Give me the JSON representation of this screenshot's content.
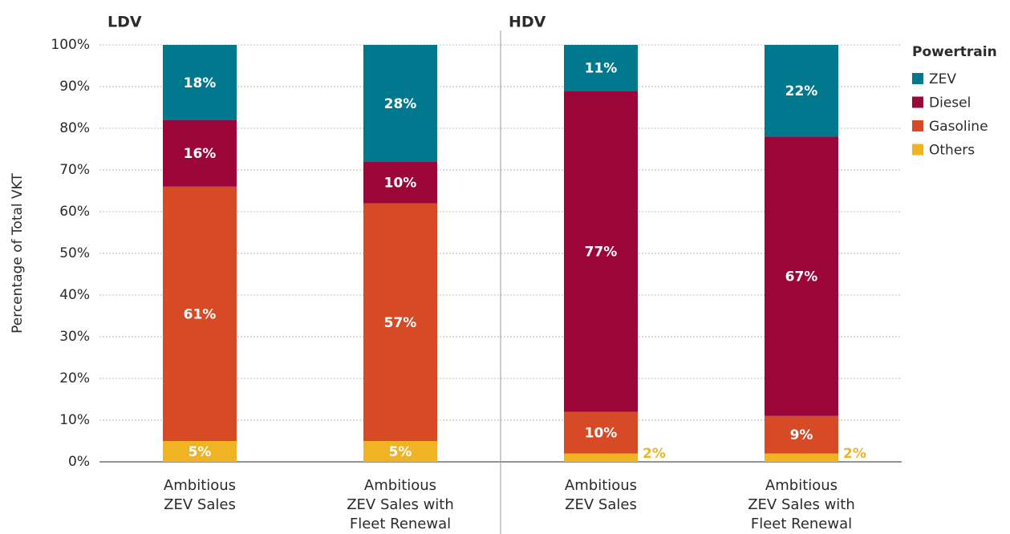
{
  "chart_data": {
    "type": "bar",
    "stacked": true,
    "group_titles": [
      "LDV",
      "HDV"
    ],
    "categories": [
      "Ambitious\nZEV Sales",
      "Ambitious\nZEV Sales with\nFleet Renewal",
      "Ambitious\nZEV Sales",
      "Ambitious\nZEV Sales with\nFleet Renewal"
    ],
    "ylabel": "Percentage of Total VKT",
    "ylim": [
      0,
      100
    ],
    "yticks": [
      {
        "value": 0,
        "label": "0%"
      },
      {
        "value": 10,
        "label": "10%"
      },
      {
        "value": 20,
        "label": "20%"
      },
      {
        "value": 30,
        "label": "30%"
      },
      {
        "value": 40,
        "label": "40%"
      },
      {
        "value": 50,
        "label": "50%"
      },
      {
        "value": 60,
        "label": "60%"
      },
      {
        "value": 70,
        "label": "70%"
      },
      {
        "value": 80,
        "label": "80%"
      },
      {
        "value": 90,
        "label": "90%"
      },
      {
        "value": 100,
        "label": "100%"
      }
    ],
    "grid": true,
    "legend": "right",
    "legend_title": "Powertrain",
    "series": [
      {
        "name": "ZEV",
        "color": "#00798f",
        "values": [
          18,
          28,
          11,
          22
        ],
        "value_labels": [
          "18%",
          "28%",
          "11%",
          "22%"
        ]
      },
      {
        "name": "Diesel",
        "color": "#9b0538",
        "values": [
          16,
          10,
          77,
          67
        ],
        "value_labels": [
          "16%",
          "10%",
          "77%",
          "67%"
        ]
      },
      {
        "name": "Gasoline",
        "color": "#d64a26",
        "values": [
          61,
          57,
          10,
          9
        ],
        "value_labels": [
          "61%",
          "57%",
          "10%",
          "9%"
        ]
      },
      {
        "name": "Others",
        "color": "#f0b323",
        "values": [
          5,
          5,
          2,
          2
        ],
        "value_labels": [
          "5%",
          "5%",
          "2%",
          "2%"
        ]
      }
    ]
  }
}
